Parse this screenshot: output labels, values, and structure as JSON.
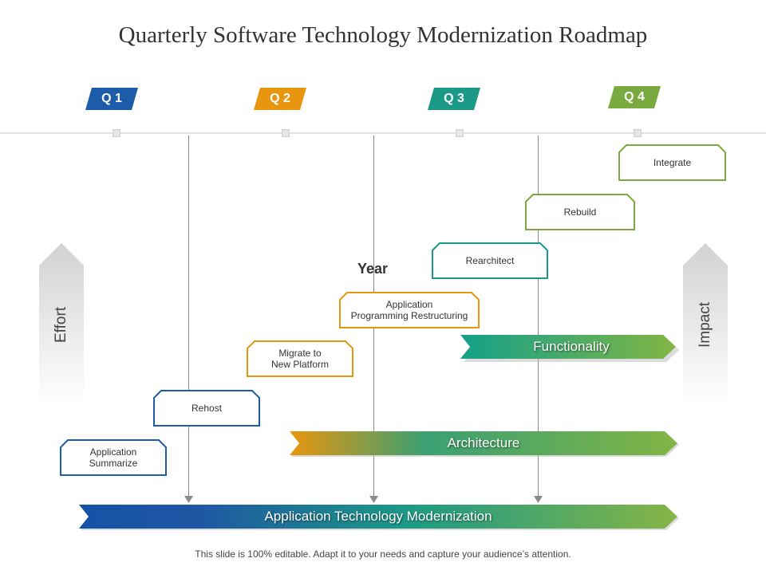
{
  "title": "Quarterly Software Technology Modernization Roadmap",
  "quarters": [
    {
      "label": "Q 1",
      "color": "#1c5ca8"
    },
    {
      "label": "Q 2",
      "color": "#e8950f"
    },
    {
      "label": "Q 3",
      "color": "#1a9a86"
    },
    {
      "label": "Q 4",
      "color": "#7aaa3f"
    }
  ],
  "year_label": "Year",
  "side_labels": {
    "left": "Effort",
    "right": "Impact"
  },
  "steps": [
    {
      "label": "Application\nSummarize",
      "color": "#1c5ca8"
    },
    {
      "label": "Rehost",
      "color": "#1c5ca8"
    },
    {
      "label": "Migrate to\nNew Platform",
      "color": "#e8950f"
    },
    {
      "label": "Application\nProgramming Restructuring",
      "color": "#e8950f"
    },
    {
      "label": "Rearchitect",
      "color": "#1a9a86"
    },
    {
      "label": "Rebuild",
      "color": "#7aaa3f"
    },
    {
      "label": "Integrate",
      "color": "#7aaa3f"
    }
  ],
  "banners": {
    "functionality": "Functionality",
    "architecture": "Architecture",
    "modernization": "Application Technology Modernization"
  },
  "footer": "This slide is 100% editable. Adapt it to your needs and capture your audience’s attention."
}
